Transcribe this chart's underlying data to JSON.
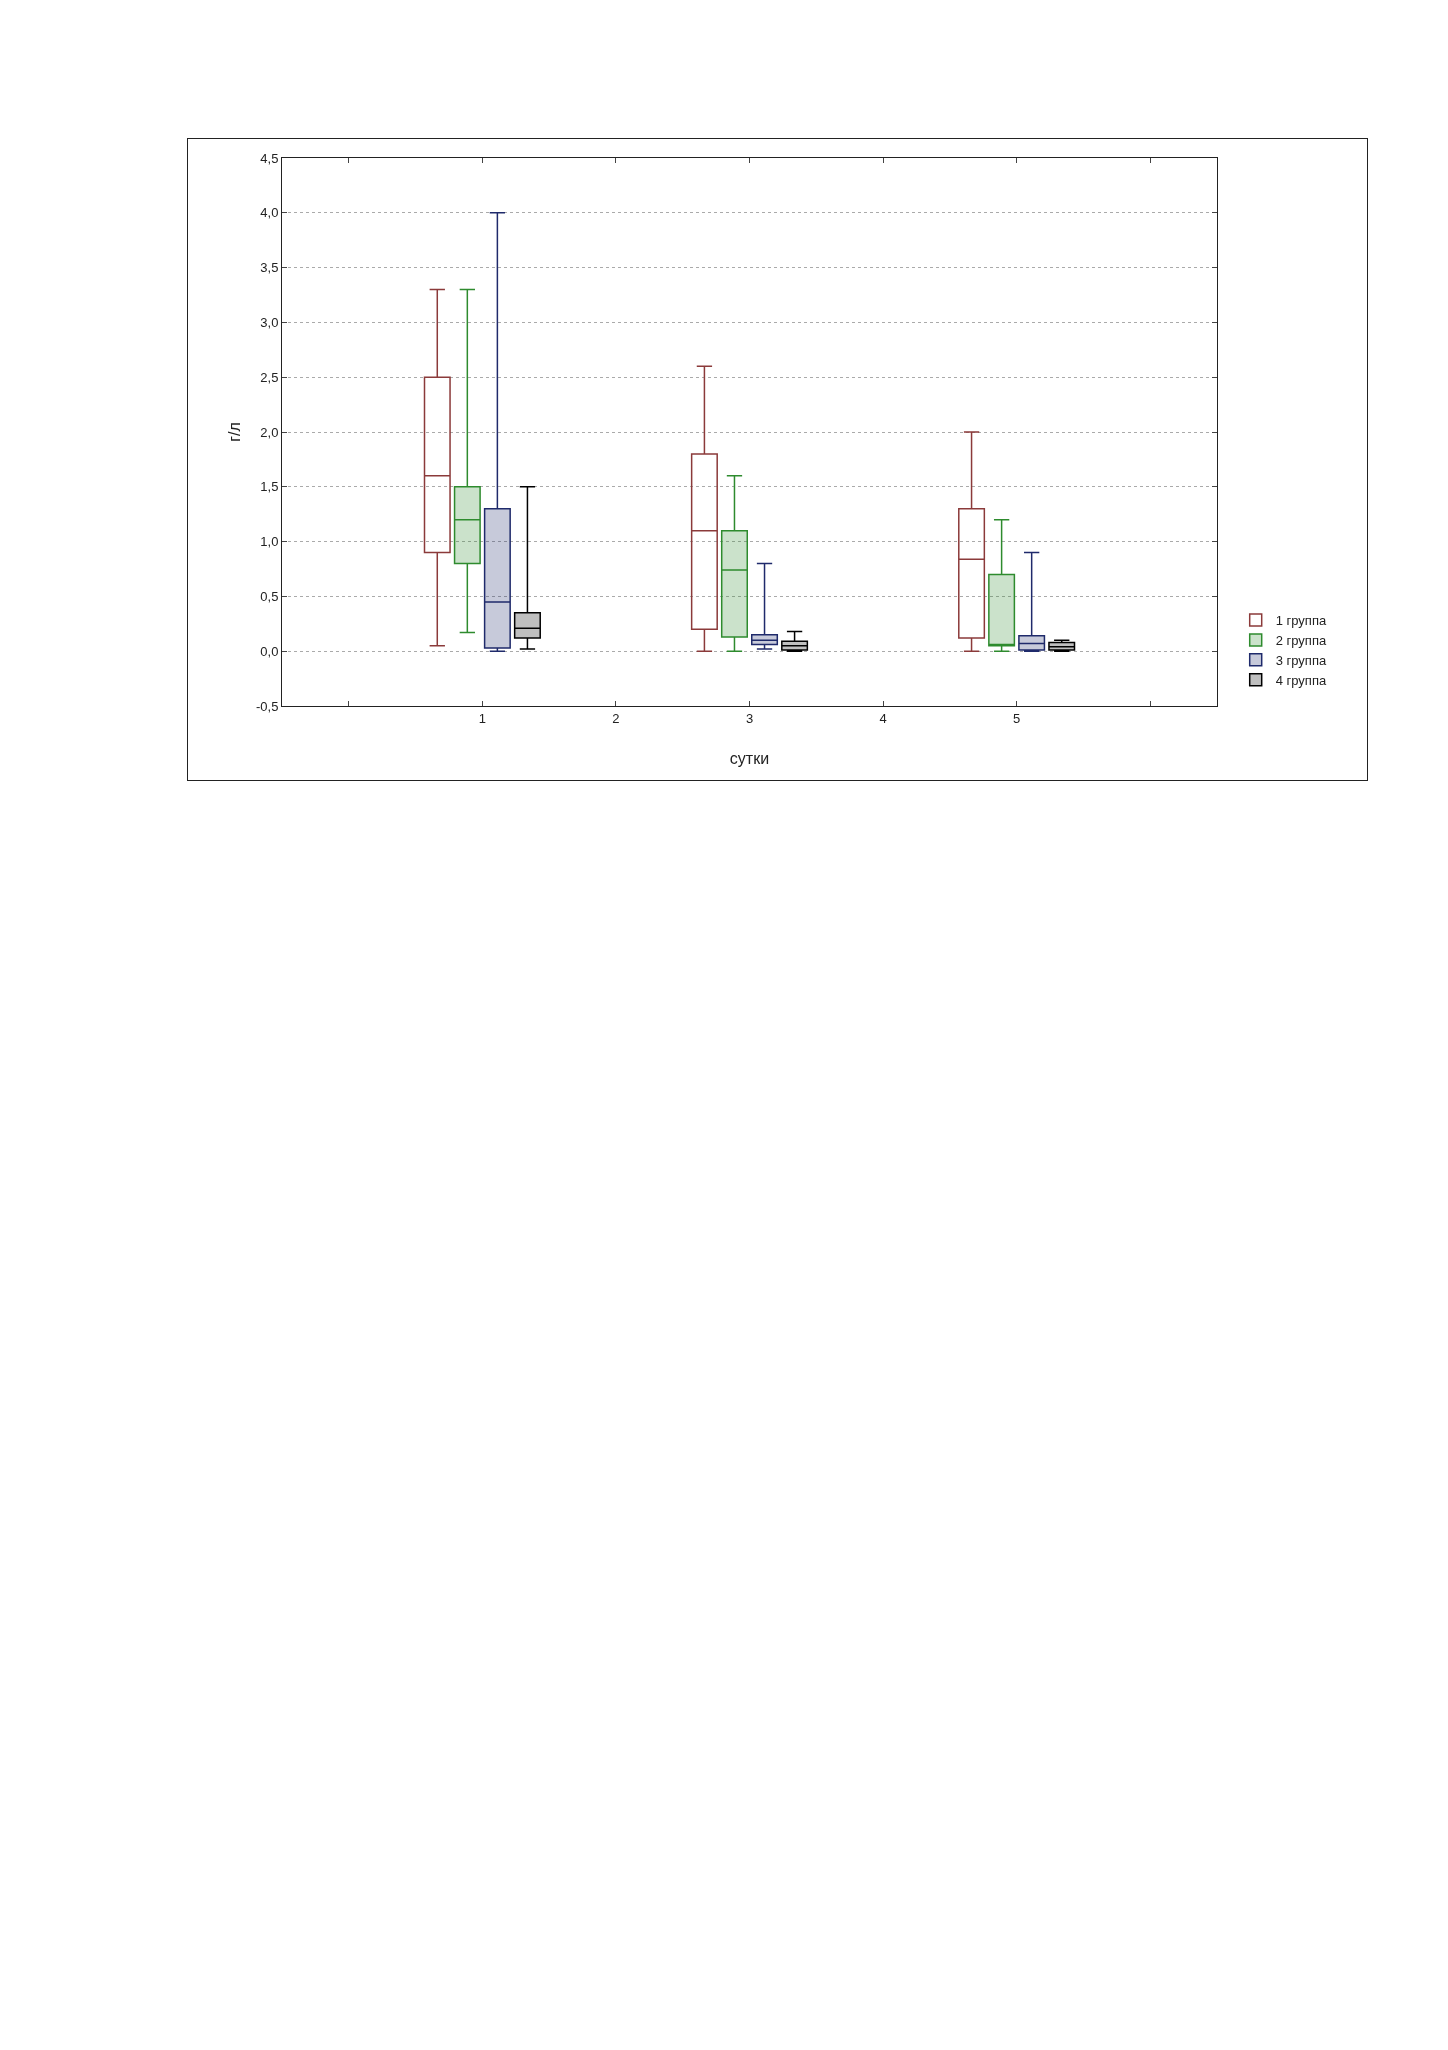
{
  "chart_data": {
    "type": "box",
    "xlabel": "сутки",
    "ylabel": "г/л",
    "x": [
      1,
      3,
      5
    ],
    "xlim": [
      -0.5,
      6.5
    ],
    "xticks": [
      {
        "value": 0,
        "label": null
      },
      1,
      2,
      3,
      4,
      5,
      {
        "value": 6,
        "label": null
      }
    ],
    "ylim": [
      -0.5,
      4.5
    ],
    "yticks": [
      {
        "value": -0.5,
        "label": "-0,5"
      },
      {
        "value": 0,
        "label": "0,0"
      },
      {
        "value": 0.5,
        "label": "0,5"
      },
      {
        "value": 1,
        "label": "1,0"
      },
      {
        "value": 1.5,
        "label": "1,5"
      },
      {
        "value": 2,
        "label": "2,0"
      },
      {
        "value": 2.5,
        "label": "2,5"
      },
      {
        "value": 3,
        "label": "3,0"
      },
      {
        "value": 3.5,
        "label": "3,5"
      },
      {
        "value": 4,
        "label": "4,0"
      },
      {
        "value": 4.5,
        "label": "4,5"
      }
    ],
    "grid": "y",
    "legend": "bottom right",
    "series": [
      {
        "name": "1 группа",
        "color": "#8b3a3a",
        "boxes": [
          {
            "low": 0.05,
            "q1": 0.9,
            "median": 1.6,
            "q3": 2.5,
            "high": 3.3
          },
          {
            "low": 0,
            "q1": 0.2,
            "median": 1.1,
            "q3": 1.8,
            "high": 2.6
          },
          {
            "low": 0,
            "q1": 0.12,
            "median": 0.84,
            "q3": 1.3,
            "high": 2.0
          }
        ]
      },
      {
        "name": "2 группа",
        "color": "#2e8b2e",
        "boxes": [
          {
            "low": 0.17,
            "q1": 0.8,
            "median": 1.2,
            "q3": 1.5,
            "high": 3.3
          },
          {
            "low": 0,
            "q1": 0.13,
            "median": 0.74,
            "q3": 1.1,
            "high": 1.6
          },
          {
            "low": 0,
            "q1": 0.05,
            "median": 0.06,
            "q3": 0.7,
            "high": 1.2
          }
        ]
      },
      {
        "name": "3 группа",
        "color": "#1f2a6b",
        "boxes": [
          {
            "low": 0,
            "q1": 0.03,
            "median": 0.45,
            "q3": 1.3,
            "high": 4.0
          },
          {
            "low": 0.02,
            "q1": 0.06,
            "median": 0.1,
            "q3": 0.15,
            "high": 0.8
          },
          {
            "low": 0,
            "q1": 0.01,
            "median": 0.07,
            "q3": 0.14,
            "high": 0.9
          }
        ]
      },
      {
        "name": "4 группа",
        "color": "#000000",
        "boxes": [
          {
            "low": 0.02,
            "q1": 0.12,
            "median": 0.21,
            "q3": 0.35,
            "high": 1.5
          },
          {
            "low": 0,
            "q1": 0.01,
            "median": 0.05,
            "q3": 0.09,
            "high": 0.18
          },
          {
            "low": 0,
            "q1": 0.01,
            "median": 0.04,
            "q3": 0.08,
            "high": 0.1
          }
        ]
      }
    ]
  }
}
